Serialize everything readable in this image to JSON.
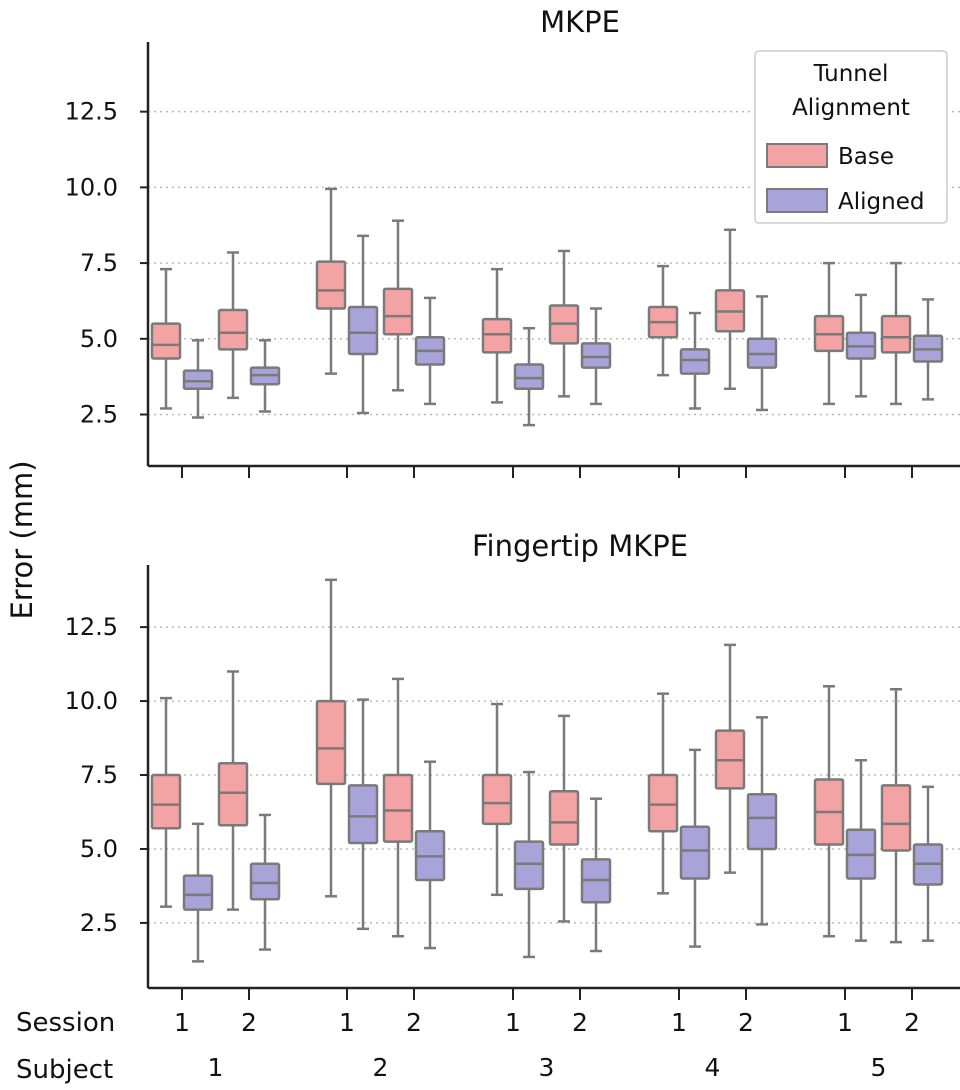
{
  "figure": {
    "ylabel": "Error (mm)",
    "session_row_label": "Session",
    "subject_row_label": "Subject",
    "sessions": [
      "1",
      "2"
    ],
    "subjects": [
      "1",
      "2",
      "3",
      "4",
      "5"
    ],
    "colors": {
      "Base": "#f4a3a5",
      "Aligned": "#a8a3d9",
      "edge": "#7a7a7a",
      "grid": "#bbbbbb",
      "axis": "#222222"
    }
  },
  "legend": {
    "title_line1": "Tunnel",
    "title_line2": "Alignment",
    "entries": [
      "Base",
      "Aligned"
    ],
    "placement": "top-right"
  },
  "chart_data": [
    {
      "type": "box",
      "title": "MKPE",
      "ylabel": "Error (mm)",
      "yticks": [
        "2.5",
        "5.0",
        "7.5",
        "10.0",
        "12.5"
      ],
      "ylim": [
        0.8,
        14.8
      ],
      "grid": "horizontal-dotted",
      "groups": [
        {
          "subject": "1",
          "session": "1",
          "Base": [
            2.7,
            4.35,
            4.8,
            5.5,
            7.3
          ],
          "Aligned": [
            2.4,
            3.35,
            3.6,
            3.95,
            4.95
          ]
        },
        {
          "subject": "1",
          "session": "2",
          "Base": [
            3.05,
            4.65,
            5.2,
            5.95,
            7.85
          ],
          "Aligned": [
            2.6,
            3.5,
            3.8,
            4.05,
            4.95
          ]
        },
        {
          "subject": "2",
          "session": "1",
          "Base": [
            3.85,
            6.0,
            6.6,
            7.55,
            9.95
          ],
          "Aligned": [
            2.55,
            4.5,
            5.2,
            6.05,
            8.4
          ]
        },
        {
          "subject": "2",
          "session": "2",
          "Base": [
            3.3,
            5.15,
            5.75,
            6.65,
            8.9
          ],
          "Aligned": [
            2.85,
            4.15,
            4.6,
            5.05,
            6.35
          ]
        },
        {
          "subject": "3",
          "session": "1",
          "Base": [
            2.9,
            4.55,
            5.15,
            5.65,
            7.3
          ],
          "Aligned": [
            2.15,
            3.35,
            3.7,
            4.15,
            5.35
          ]
        },
        {
          "subject": "3",
          "session": "2",
          "Base": [
            3.1,
            4.85,
            5.5,
            6.1,
            7.9
          ],
          "Aligned": [
            2.85,
            4.05,
            4.4,
            4.85,
            6.0
          ]
        },
        {
          "subject": "4",
          "session": "1",
          "Base": [
            3.8,
            5.05,
            5.55,
            6.05,
            7.4
          ],
          "Aligned": [
            2.7,
            3.85,
            4.3,
            4.65,
            5.85
          ]
        },
        {
          "subject": "4",
          "session": "2",
          "Base": [
            3.35,
            5.25,
            5.9,
            6.6,
            8.6
          ],
          "Aligned": [
            2.65,
            4.05,
            4.5,
            5.0,
            6.4
          ]
        },
        {
          "subject": "5",
          "session": "1",
          "Base": [
            2.85,
            4.6,
            5.15,
            5.75,
            7.5
          ],
          "Aligned": [
            3.1,
            4.35,
            4.75,
            5.2,
            6.45
          ]
        },
        {
          "subject": "5",
          "session": "2",
          "Base": [
            2.85,
            4.55,
            5.05,
            5.75,
            7.5
          ],
          "Aligned": [
            3.0,
            4.25,
            4.65,
            5.1,
            6.3
          ]
        }
      ]
    },
    {
      "type": "box",
      "title": "Fingertip MKPE",
      "ylabel": "Error (mm)",
      "yticks": [
        "2.5",
        "5.0",
        "7.5",
        "10.0",
        "12.5"
      ],
      "ylim": [
        0.3,
        14.6
      ],
      "grid": "horizontal-dotted",
      "groups": [
        {
          "subject": "1",
          "session": "1",
          "Base": [
            3.05,
            5.7,
            6.5,
            7.5,
            10.1
          ],
          "Aligned": [
            1.2,
            2.95,
            3.45,
            4.1,
            5.85
          ]
        },
        {
          "subject": "1",
          "session": "2",
          "Base": [
            2.95,
            5.8,
            6.9,
            7.9,
            11.0
          ],
          "Aligned": [
            1.6,
            3.3,
            3.85,
            4.5,
            6.15
          ]
        },
        {
          "subject": "2",
          "session": "1",
          "Base": [
            3.4,
            7.2,
            8.4,
            10.0,
            14.1
          ],
          "Aligned": [
            2.3,
            5.2,
            6.1,
            7.15,
            10.05
          ]
        },
        {
          "subject": "2",
          "session": "2",
          "Base": [
            2.05,
            5.25,
            6.3,
            7.5,
            10.75
          ],
          "Aligned": [
            1.65,
            3.95,
            4.75,
            5.6,
            7.95
          ]
        },
        {
          "subject": "3",
          "session": "1",
          "Base": [
            3.45,
            5.85,
            6.55,
            7.5,
            9.9
          ],
          "Aligned": [
            1.35,
            3.65,
            4.5,
            5.25,
            7.6
          ]
        },
        {
          "subject": "3",
          "session": "2",
          "Base": [
            2.55,
            5.15,
            5.9,
            6.95,
            9.5
          ],
          "Aligned": [
            1.55,
            3.2,
            3.95,
            4.65,
            6.7
          ]
        },
        {
          "subject": "4",
          "session": "1",
          "Base": [
            3.5,
            5.6,
            6.5,
            7.5,
            10.25
          ],
          "Aligned": [
            1.7,
            4.0,
            4.95,
            5.75,
            8.35
          ]
        },
        {
          "subject": "4",
          "session": "2",
          "Base": [
            4.2,
            7.05,
            8.0,
            9.0,
            11.9
          ],
          "Aligned": [
            2.45,
            5.0,
            6.05,
            6.85,
            9.45
          ]
        },
        {
          "subject": "5",
          "session": "1",
          "Base": [
            2.05,
            5.15,
            6.25,
            7.35,
            10.5
          ],
          "Aligned": [
            1.9,
            4.0,
            4.8,
            5.65,
            8.0
          ]
        },
        {
          "subject": "5",
          "session": "2",
          "Base": [
            1.85,
            4.95,
            5.85,
            7.15,
            10.4
          ],
          "Aligned": [
            1.9,
            3.8,
            4.5,
            5.15,
            7.1
          ]
        }
      ]
    }
  ]
}
